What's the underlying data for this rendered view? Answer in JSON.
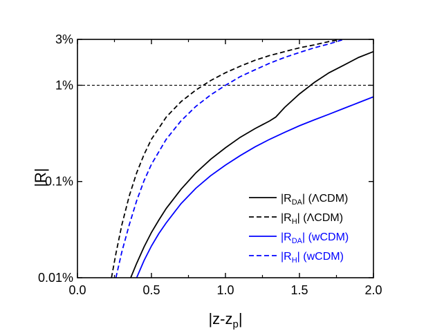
{
  "chart_data": {
    "type": "line",
    "xlabel": "|z-z",
    "xlabel_sub": "p",
    "xlabel_end": "|",
    "ylabel": "|R|",
    "xlim": [
      0.0,
      2.0
    ],
    "ylim": [
      0.01,
      3
    ],
    "yscale": "log",
    "xticks": [
      0.0,
      0.5,
      1.0,
      1.5,
      2.0
    ],
    "xtick_labels": [
      "0.0",
      "0.5",
      "1.0",
      "1.5",
      "2.0"
    ],
    "yticks": [
      0.01,
      0.1,
      1,
      3
    ],
    "ytick_labels": [
      "0.01%",
      "0.1%",
      "1%",
      "3%"
    ],
    "reference_line": {
      "y": 1,
      "style": "dashed",
      "color": "#000000"
    },
    "legend_position": "lower-right",
    "colors": {
      "black": "#000000",
      "blue": "#0000ff"
    },
    "series": [
      {
        "legend": {
          "pre": "|R",
          "sub": "DA",
          "post": "| (ΛCDM)"
        },
        "color": "#000000",
        "dash": "solid",
        "x": [
          0.36,
          0.4,
          0.45,
          0.5,
          0.55,
          0.6,
          0.7,
          0.8,
          0.9,
          1.0,
          1.1,
          1.2,
          1.3,
          1.34,
          1.4,
          1.5,
          1.6,
          1.7,
          1.8,
          1.9,
          2.0
        ],
        "y": [
          0.01,
          0.0141,
          0.0209,
          0.0296,
          0.0398,
          0.0525,
          0.0832,
          0.123,
          0.17,
          0.224,
          0.288,
          0.355,
          0.427,
          0.468,
          0.589,
          0.813,
          1.07,
          1.35,
          1.62,
          1.95,
          2.24
        ]
      },
      {
        "legend": {
          "pre": "|R",
          "sub": "H",
          "post": "| (ΛCDM)"
        },
        "color": "#000000",
        "dash": "dashed",
        "x": [
          0.23,
          0.26,
          0.3,
          0.35,
          0.4,
          0.45,
          0.5,
          0.6,
          0.7,
          0.8,
          0.9,
          1.0,
          1.1,
          1.2,
          1.3,
          1.4,
          1.5,
          1.6,
          1.7,
          1.78
        ],
        "y": [
          0.01,
          0.0178,
          0.0355,
          0.0708,
          0.123,
          0.191,
          0.275,
          0.468,
          0.676,
          0.891,
          1.12,
          1.35,
          1.58,
          1.82,
          2.04,
          2.24,
          2.45,
          2.63,
          2.85,
          3.0
        ]
      },
      {
        "legend": {
          "pre": "|R",
          "sub": "DA",
          "post": "| (wCDM)"
        },
        "color": "#0000ff",
        "dash": "solid",
        "x": [
          0.4,
          0.45,
          0.5,
          0.55,
          0.6,
          0.7,
          0.8,
          0.9,
          1.0,
          1.1,
          1.2,
          1.3,
          1.4,
          1.5,
          1.6,
          1.7,
          1.8,
          1.9,
          2.0
        ],
        "y": [
          0.01,
          0.0151,
          0.0214,
          0.0288,
          0.0372,
          0.0589,
          0.0851,
          0.115,
          0.148,
          0.186,
          0.229,
          0.275,
          0.324,
          0.38,
          0.437,
          0.501,
          0.575,
          0.661,
          0.759
        ]
      },
      {
        "legend": {
          "pre": "|R",
          "sub": "H",
          "post": "| (wCDM)"
        },
        "color": "#0000ff",
        "dash": "dashed",
        "x": [
          0.26,
          0.3,
          0.35,
          0.4,
          0.45,
          0.5,
          0.6,
          0.7,
          0.8,
          0.9,
          1.0,
          1.1,
          1.2,
          1.3,
          1.4,
          1.5,
          1.6,
          1.7,
          1.8
        ],
        "y": [
          0.01,
          0.0186,
          0.0355,
          0.0631,
          0.102,
          0.151,
          0.275,
          0.427,
          0.603,
          0.794,
          1.0,
          1.23,
          1.45,
          1.7,
          1.95,
          2.19,
          2.45,
          2.69,
          3.0
        ]
      }
    ]
  }
}
